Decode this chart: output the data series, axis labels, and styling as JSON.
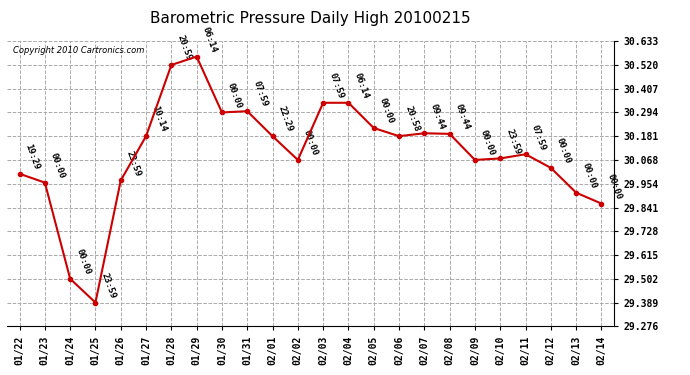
{
  "title": "Barometric Pressure Daily High 20100215",
  "copyright": "Copyright 2010 Cartronics.com",
  "x_labels": [
    "01/22",
    "01/23",
    "01/24",
    "01/25",
    "01/26",
    "01/27",
    "01/28",
    "01/29",
    "01/30",
    "01/31",
    "02/01",
    "02/02",
    "02/03",
    "02/04",
    "02/05",
    "02/06",
    "02/07",
    "02/08",
    "02/09",
    "02/10",
    "02/11",
    "02/12",
    "02/13",
    "02/14"
  ],
  "y_values": [
    30.002,
    29.96,
    29.502,
    29.389,
    29.97,
    30.181,
    30.52,
    30.56,
    30.294,
    30.3,
    30.181,
    30.068,
    30.34,
    30.34,
    30.22,
    30.181,
    30.195,
    30.192,
    30.068,
    30.075,
    30.095,
    30.03,
    29.912,
    29.86
  ],
  "point_labels": [
    "19:29",
    "00:00",
    "00:00",
    "23:59",
    "23:59",
    "10:14",
    "20:59",
    "06:14",
    "00:00",
    "07:59",
    "22:29",
    "00:00",
    "07:59",
    "06:14",
    "00:00",
    "20:58",
    "09:44",
    "09:44",
    "00:00",
    "23:59",
    "07:59",
    "00:00",
    "00:00",
    "00:00"
  ],
  "ylim": [
    29.276,
    30.633
  ],
  "yticks": [
    29.276,
    29.389,
    29.502,
    29.615,
    29.728,
    29.841,
    29.954,
    30.068,
    30.181,
    30.294,
    30.407,
    30.52,
    30.633
  ],
  "line_color": "#cc0000",
  "marker_color": "#cc0000",
  "bg_color": "#ffffff",
  "grid_color": "#aaaaaa",
  "title_fontsize": 11,
  "tick_fontsize": 7,
  "point_label_fontsize": 6.5
}
